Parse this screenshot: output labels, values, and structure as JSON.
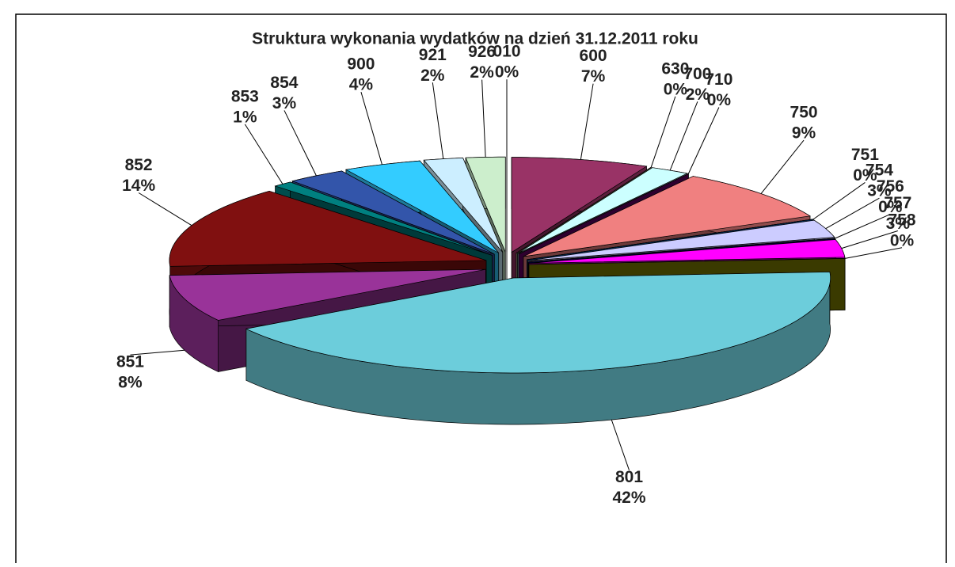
{
  "chart_data": {
    "type": "pie3d",
    "title": "Struktura wykonania wydatków na dzień 31.12.2011 roku",
    "categories": [
      "010",
      "600",
      "630",
      "700",
      "710",
      "750",
      "751",
      "754",
      "756",
      "757",
      "758",
      "801",
      "851",
      "852",
      "853",
      "854",
      "900",
      "921",
      "926"
    ],
    "values": [
      0,
      7,
      0,
      2,
      0,
      9,
      0,
      3,
      0,
      3,
      0,
      42,
      8,
      14,
      1,
      3,
      4,
      2,
      2
    ],
    "value_labels": [
      "0%",
      "7%",
      "0%",
      "2%",
      "0%",
      "9%",
      "0%",
      "3%",
      "0%",
      "3%",
      "0%",
      "42%",
      "8%",
      "14%",
      "1%",
      "3%",
      "4%",
      "2%",
      "2%"
    ],
    "colors": [
      "#336666",
      "#993366",
      "#cccc99",
      "#ccffff",
      "#660066",
      "#f08080",
      "#0066cc",
      "#ccccff",
      "#000080",
      "#ff00ff",
      "#808000",
      "#6ccddb",
      "#993399",
      "#801010",
      "#008080",
      "#3355aa",
      "#33ccff",
      "#cceeff",
      "#cceecc"
    ]
  }
}
